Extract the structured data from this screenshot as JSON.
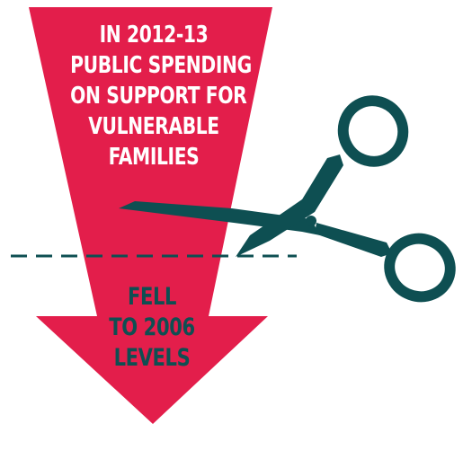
{
  "colors": {
    "arrow": "#e31e4b",
    "scissors": "#0e4f52",
    "cut_line": "#0e4f52",
    "headline_text": "#ffffff",
    "outcome_text": "#0e4f52"
  },
  "icons": {
    "arrow": "down-arrow-icon",
    "scissors": "scissors-icon"
  },
  "headline": {
    "lines": [
      "IN 2012-13",
      "PUBLIC SPENDING",
      "ON SUPPORT FOR",
      "VULNERABLE",
      "FAMILIES"
    ]
  },
  "outcome": {
    "lines": [
      "FELL",
      "TO 2006",
      "LEVELS"
    ]
  }
}
